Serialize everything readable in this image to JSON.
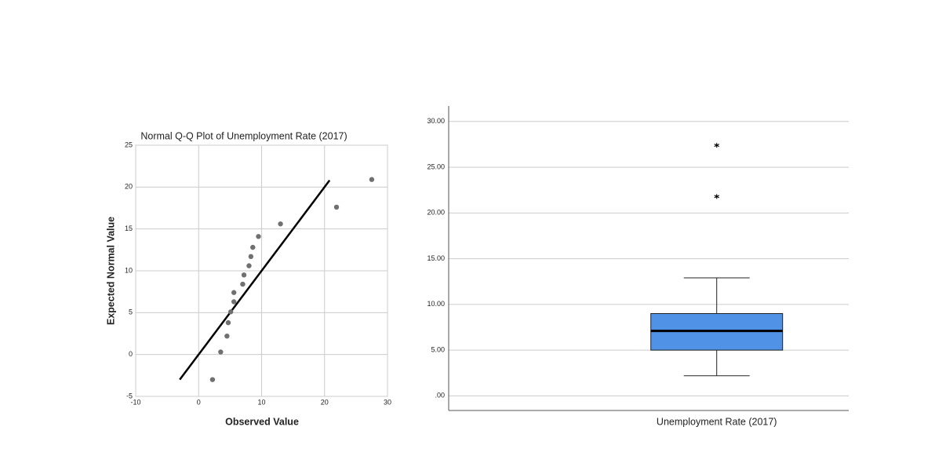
{
  "chart_data": [
    {
      "type": "scatter",
      "title": "Normal Q-Q Plot of Unemployment Rate (2017)",
      "x_label": "Observed Value",
      "y_label": "Expected Normal Value",
      "x": [
        2.2,
        3.5,
        4.5,
        4.7,
        5.1,
        5.6,
        5.6,
        7.0,
        7.2,
        8.0,
        8.3,
        8.6,
        9.5,
        13.0,
        21.9,
        27.5
      ],
      "y": [
        -3.0,
        0.3,
        2.2,
        3.8,
        5.1,
        6.3,
        7.4,
        8.4,
        9.5,
        10.6,
        11.7,
        12.8,
        14.1,
        15.6,
        17.6,
        20.9
      ],
      "color": "#707070",
      "reference_line": {
        "x": [
          -3,
          20.8
        ],
        "y": [
          -3,
          20.8
        ],
        "color": "#000000"
      },
      "xlim": [
        -10,
        30
      ],
      "ylim": [
        -5,
        25
      ],
      "xticks": [
        -10,
        0,
        10,
        20,
        30
      ],
      "yticks": [
        -5,
        0,
        5,
        10,
        15,
        20,
        25
      ],
      "grid": true
    },
    {
      "type": "box",
      "categories": [
        "Unemployment Rate (2017)"
      ],
      "color": "#4f92e6",
      "boxes": [
        {
          "whisker_low": 2.2,
          "q1": 5.0,
          "median": 7.1,
          "q3": 9.0,
          "whisker_high": 12.9,
          "outliers": [
            21.8,
            27.4
          ]
        }
      ],
      "ylim": [
        -1.6,
        31.7
      ],
      "yticks": [
        {
          "value": 0,
          "label": ".00"
        },
        {
          "value": 5,
          "label": "5.00"
        },
        {
          "value": 10,
          "label": "10.00"
        },
        {
          "value": 15,
          "label": "15.00"
        },
        {
          "value": 20,
          "label": "20.00"
        },
        {
          "value": 25,
          "label": "25.00"
        },
        {
          "value": 30,
          "label": "30.00"
        }
      ],
      "grid": true
    }
  ]
}
